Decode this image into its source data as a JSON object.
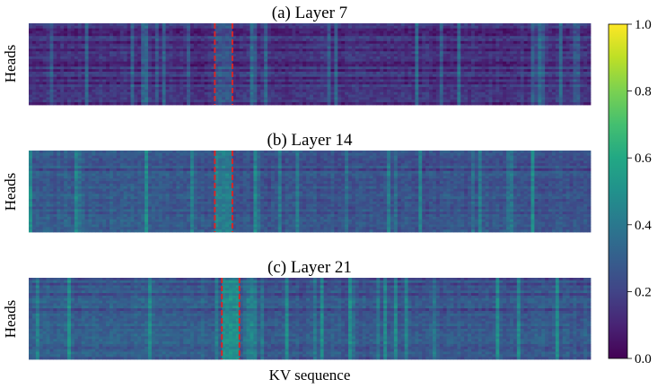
{
  "chart_data": {
    "type": "heatmap",
    "colormap": "viridis",
    "xlabel": "KV sequence",
    "colorbar": {
      "range": [
        0.0,
        1.0
      ],
      "ticks": [
        "0.0",
        "0.2",
        "0.4",
        "0.6",
        "0.8",
        "1.0"
      ]
    },
    "highlight_color": "#d62728",
    "panels": [
      {
        "title": "(a) Layer 7",
        "ylabel": "Heads",
        "rows": 32,
        "cols": 160,
        "base_intensity": 0.17,
        "highlight_cols": [
          53,
          57
        ]
      },
      {
        "title": "(b) Layer 14",
        "ylabel": "Heads",
        "rows": 32,
        "cols": 160,
        "base_intensity": 0.25,
        "highlight_cols": [
          53,
          57
        ]
      },
      {
        "title": "(c) Layer 21",
        "ylabel": "Heads",
        "rows": 32,
        "cols": 160,
        "base_intensity": 0.27,
        "highlight_cols": [
          55,
          59
        ]
      }
    ]
  }
}
